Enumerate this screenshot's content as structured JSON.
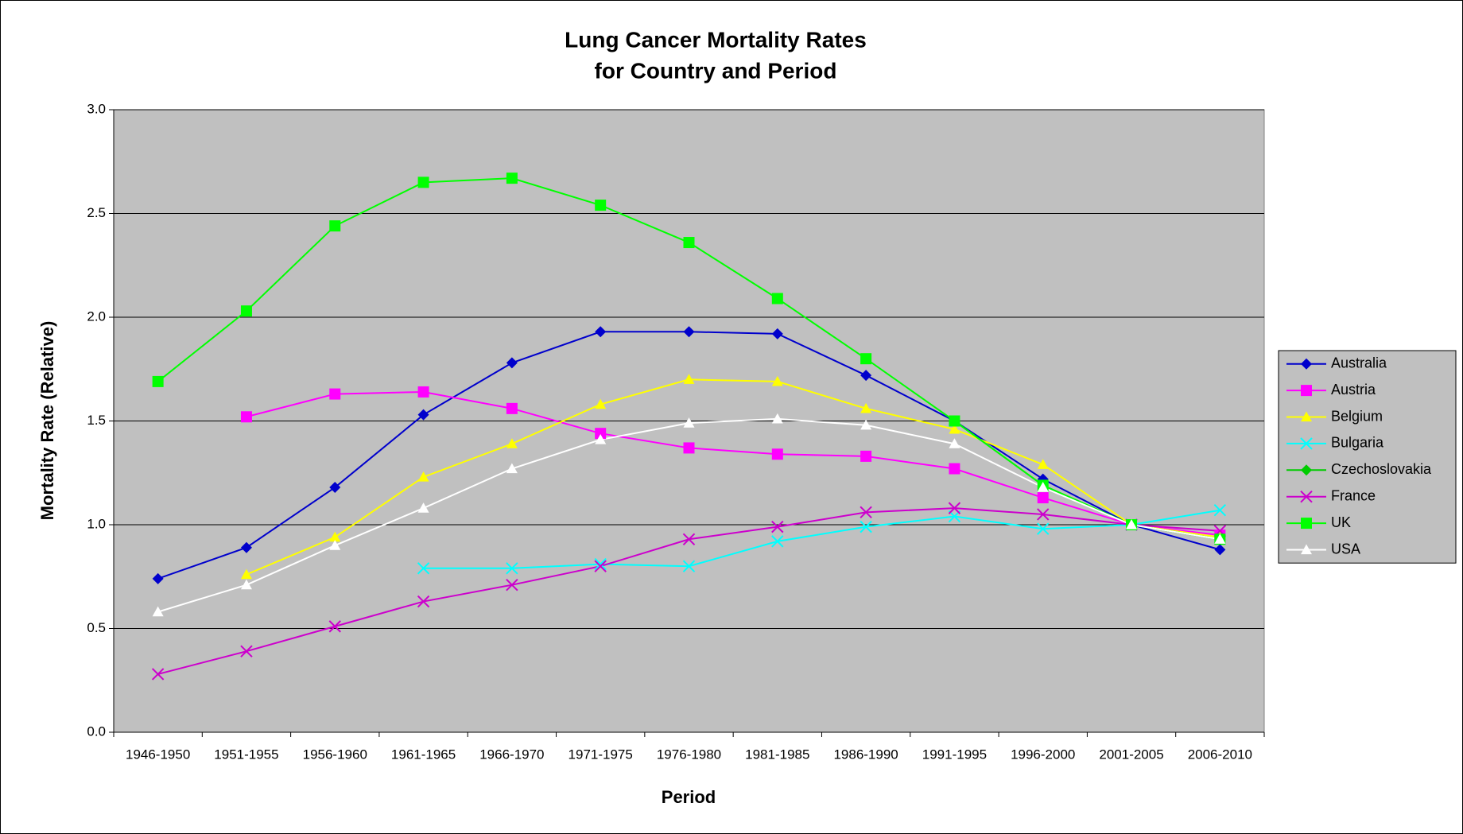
{
  "chart_data": {
    "type": "line",
    "title": [
      "Lung Cancer Mortality Rates",
      "for Country and Period"
    ],
    "x_label": "Period",
    "y_label": "Mortality Rate (Relative)",
    "categories": [
      "1946-1950",
      "1951-1955",
      "1956-1960",
      "1961-1965",
      "1966-1970",
      "1971-1975",
      "1976-1980",
      "1981-1985",
      "1986-1990",
      "1991-1995",
      "1996-2000",
      "2001-2005",
      "2006-2010"
    ],
    "ylim": [
      0,
      3
    ],
    "yticks": [
      {
        "value": 0,
        "label": "0.0"
      },
      0.5,
      {
        "value": 1,
        "label": "1.0"
      },
      1.5,
      {
        "value": 2,
        "label": "2.0"
      },
      2.5,
      {
        "value": 3,
        "label": "3.0"
      }
    ],
    "grid": true,
    "legend": "right",
    "series": [
      {
        "name": "Australia",
        "color": "#0000cc",
        "marker": "diamond",
        "values": [
          0.74,
          0.89,
          1.18,
          1.53,
          1.78,
          1.93,
          1.93,
          1.92,
          1.72,
          1.5,
          1.22,
          1.0,
          0.88
        ]
      },
      {
        "name": "Austria",
        "color": "#ff00ff",
        "marker": "square",
        "values": [
          null,
          1.52,
          1.63,
          1.64,
          1.56,
          1.44,
          1.37,
          1.34,
          1.33,
          1.27,
          1.13,
          1.0,
          0.95
        ]
      },
      {
        "name": "Belgium",
        "color": "#ffff00",
        "marker": "triangle",
        "values": [
          null,
          0.76,
          0.94,
          1.23,
          1.39,
          1.58,
          1.7,
          1.69,
          1.56,
          1.46,
          1.29,
          1.0,
          0.94
        ]
      },
      {
        "name": "Bulgaria",
        "color": "#00ffff",
        "marker": "x",
        "values": [
          null,
          null,
          null,
          0.79,
          0.79,
          0.81,
          0.8,
          0.92,
          0.99,
          1.04,
          0.98,
          1.0,
          1.07
        ]
      },
      {
        "name": "Czechoslovakia",
        "color": "#00cc00",
        "marker": "diamond",
        "values": [
          null,
          null,
          null,
          null,
          null,
          null,
          null,
          null,
          null,
          1.5,
          1.19,
          1.0,
          0.93
        ]
      },
      {
        "name": "France",
        "color": "#cc00cc",
        "marker": "x",
        "values": [
          0.28,
          0.39,
          0.51,
          0.63,
          0.71,
          0.8,
          0.93,
          0.99,
          1.06,
          1.08,
          1.05,
          1.0,
          0.97
        ]
      },
      {
        "name": "UK",
        "color": "#00ff00",
        "marker": "square",
        "values": [
          1.69,
          2.03,
          2.44,
          2.65,
          2.67,
          2.54,
          2.36,
          2.09,
          1.8,
          1.5,
          1.19,
          1.0,
          0.93
        ]
      },
      {
        "name": "USA",
        "color": "#ffffff",
        "marker": "triangle",
        "values": [
          0.58,
          0.71,
          0.9,
          1.08,
          1.27,
          1.41,
          1.49,
          1.51,
          1.48,
          1.39,
          1.18,
          1.0,
          0.93
        ]
      }
    ]
  }
}
